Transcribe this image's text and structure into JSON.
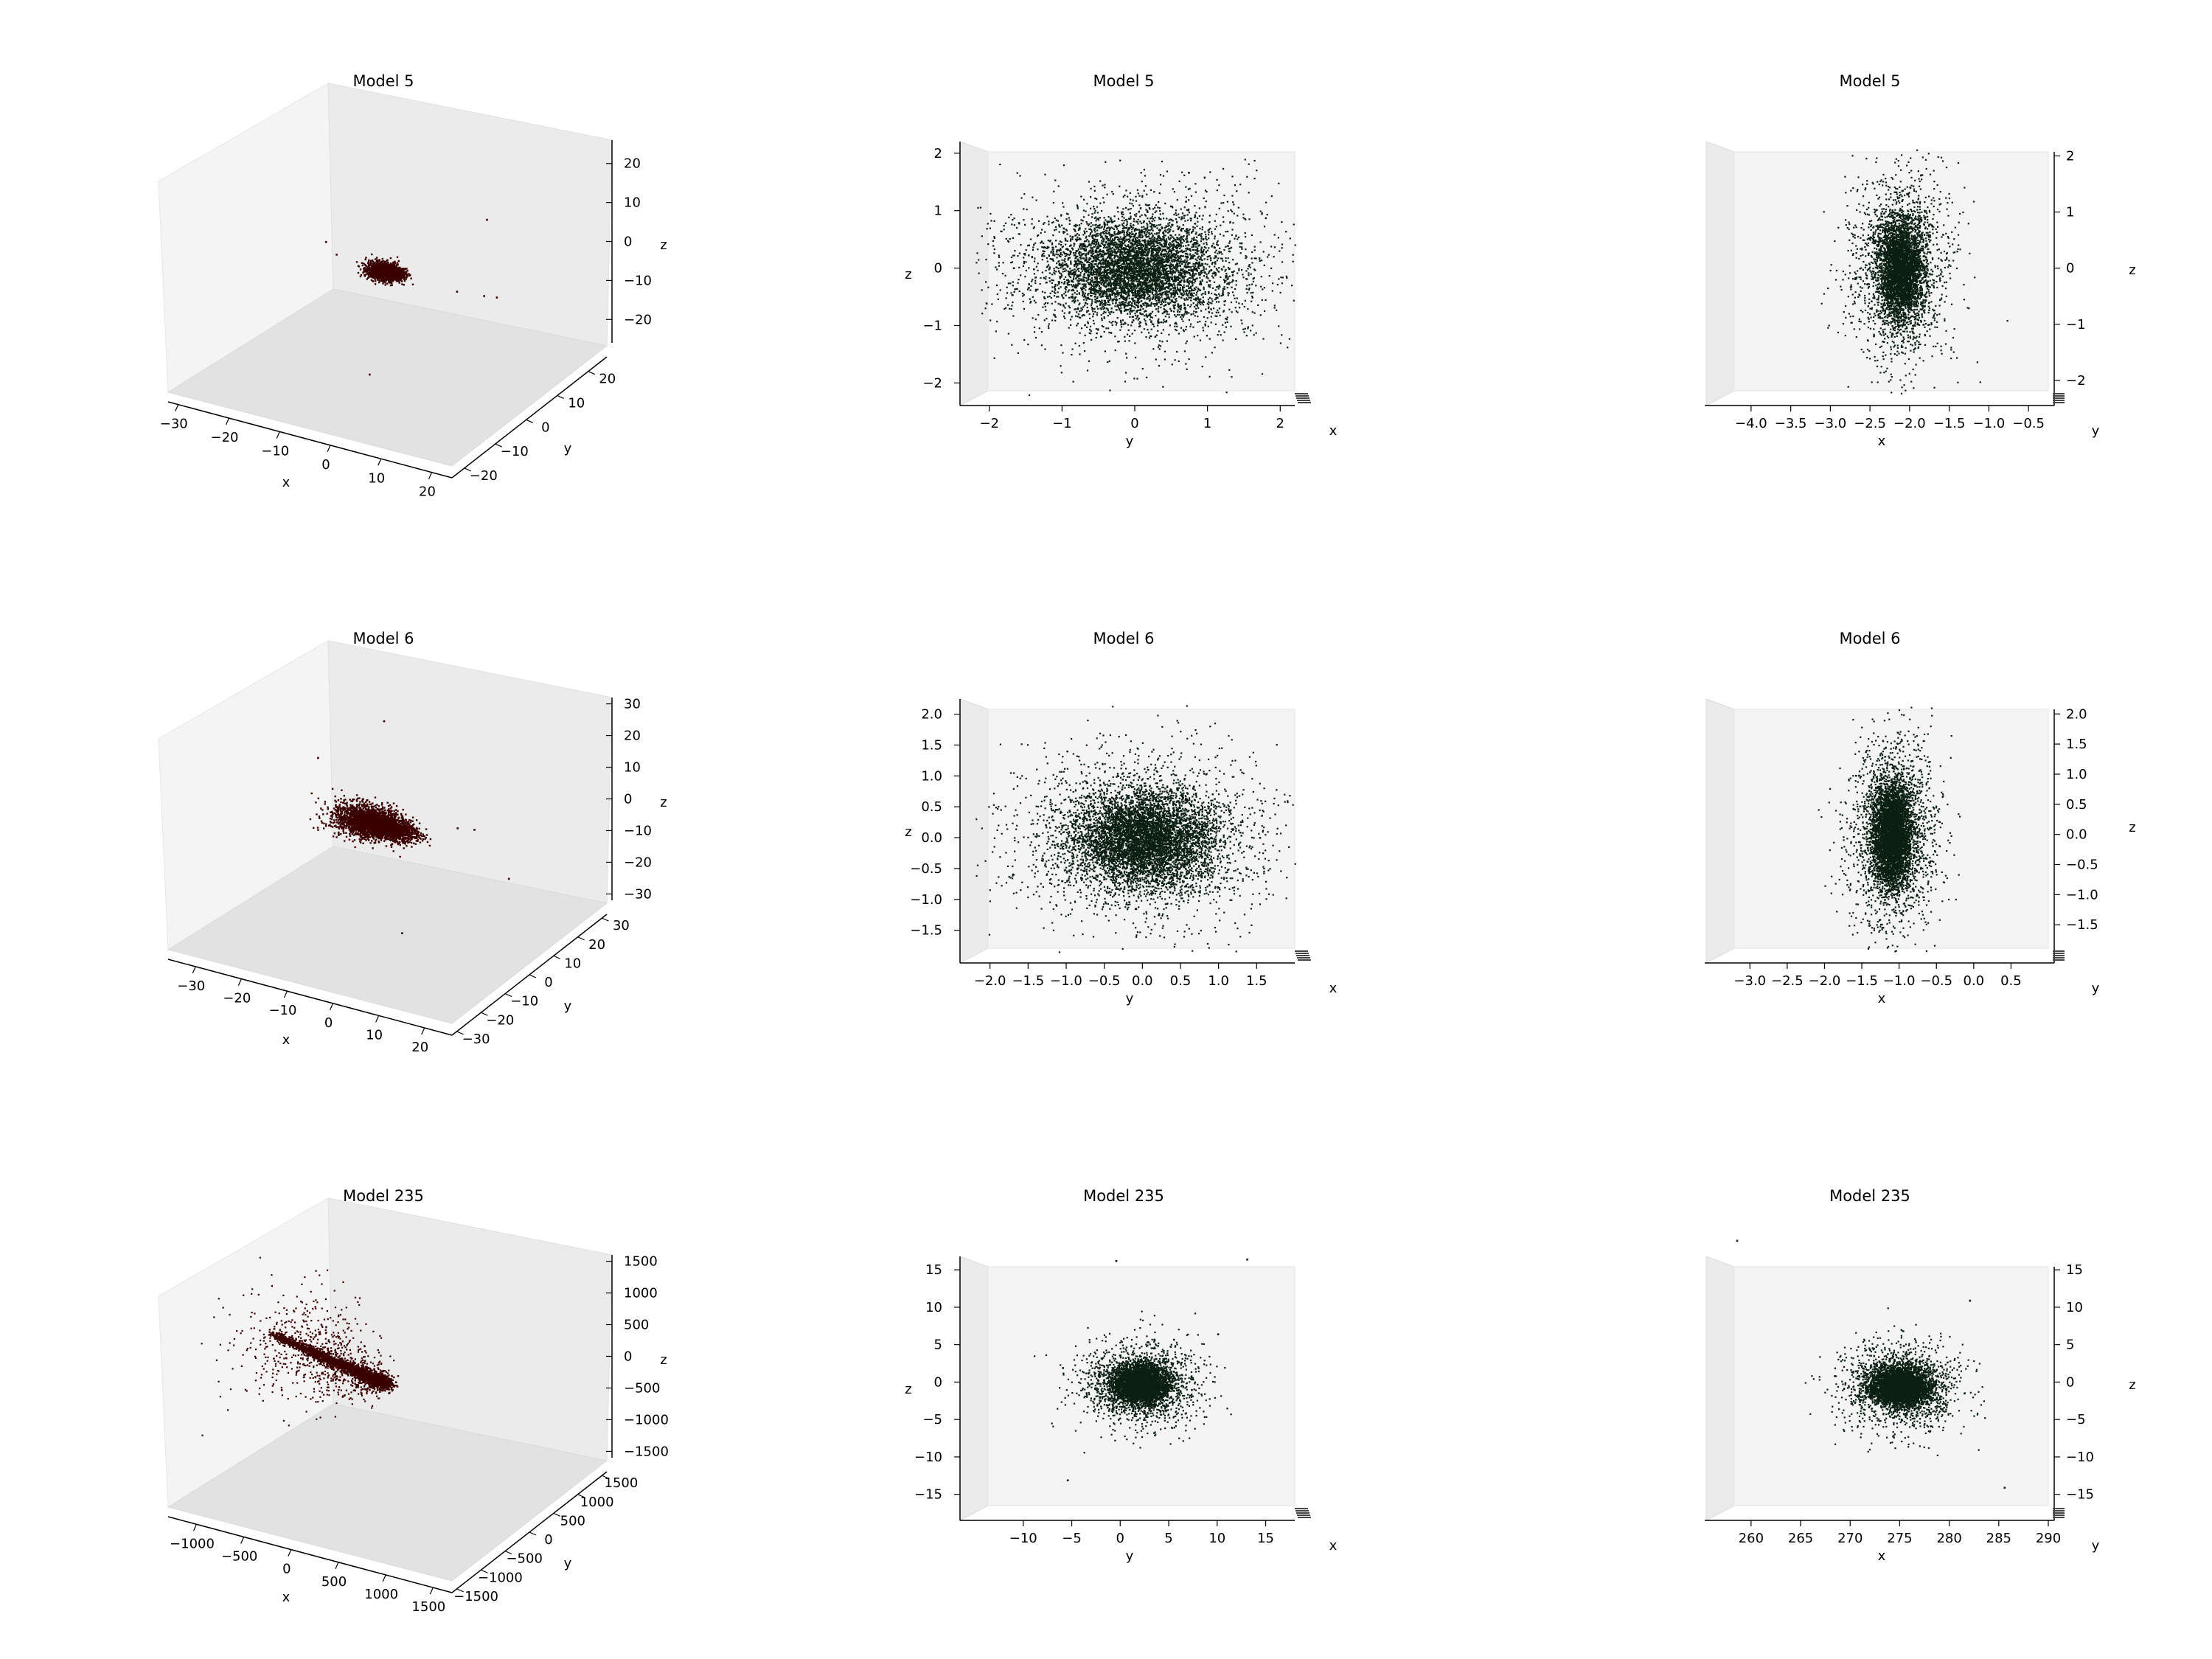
{
  "colors": {
    "background": "#ffffff",
    "pane_light": "#f4f4f4",
    "pane_mid": "#ebebeb",
    "pane_dark": "#e2e2e2",
    "point_3d": "#3a0000",
    "point_2d": "#0b1f12",
    "axis": "#000000"
  },
  "chart_data": [
    {
      "type": "scatter",
      "view": "3d",
      "title": "Model 5",
      "xlabel": "x",
      "ylabel": "y",
      "zlabel": "z",
      "xticks": [
        "−30",
        "−20",
        "−10",
        "0",
        "10",
        "20"
      ],
      "xlim": [
        -32,
        24
      ],
      "yticks": [
        "−20",
        "−10",
        "0",
        "10",
        "20"
      ],
      "ylim": [
        -24,
        26
      ],
      "zticks": [
        "−20",
        "−10",
        "0",
        "10",
        "20"
      ],
      "zlim": [
        -26,
        26
      ],
      "grid": false,
      "cluster": {
        "center": [
          -2.2,
          0,
          0
        ],
        "spread": [
          1.6,
          1.2,
          0.8
        ],
        "tail_to": [
          0.5,
          0,
          0
        ],
        "points": 2500
      },
      "outliers": [
        [
          14,
          -3,
          2
        ],
        [
          18,
          4,
          -2
        ],
        [
          21,
          -6,
          5
        ],
        [
          -18,
          12,
          -8
        ],
        [
          10,
          15,
          9
        ],
        [
          5,
          -18,
          -14
        ],
        [
          -8,
          -10,
          11
        ]
      ]
    },
    {
      "type": "scatter",
      "view": "yz",
      "title": "Model 5",
      "xlabel": "y",
      "ylabel": "z",
      "depth_label": "x",
      "xticks": [
        "−2",
        "−1",
        "0",
        "1",
        "2"
      ],
      "xlim": [
        -2.2,
        2.2
      ],
      "yticks": [
        "−2",
        "−1",
        "0",
        "1",
        "2"
      ],
      "ylim": [
        -2.2,
        2.1
      ],
      "grid": false,
      "cluster": {
        "center": [
          0,
          0
        ],
        "sd": [
          0.55,
          0.42
        ],
        "halo_sd": [
          1.05,
          0.75
        ],
        "points": 6000
      }
    },
    {
      "type": "scatter",
      "view": "xz",
      "title": "Model 5",
      "xlabel": "x",
      "ylabel": "z",
      "depth_label": "y",
      "xticks": [
        "−4.0",
        "−3.5",
        "−3.0",
        "−2.5",
        "−2.0",
        "−1.5",
        "−1.0",
        "−0.5"
      ],
      "xlim": [
        -4.25,
        -0.25
      ],
      "yticks": [
        "−2",
        "−1",
        "0",
        "1",
        "2"
      ],
      "ylim": [
        -2.25,
        2.15
      ],
      "grid": false,
      "cluster": {
        "center": [
          -2.12,
          0
        ],
        "sd": [
          0.14,
          0.45
        ],
        "halo_sd": [
          0.32,
          0.85
        ],
        "points": 5000
      }
    },
    {
      "type": "scatter",
      "view": "3d",
      "title": "Model 6",
      "xlabel": "x",
      "ylabel": "y",
      "zlabel": "z",
      "xticks": [
        "−30",
        "−20",
        "−10",
        "0",
        "10",
        "20"
      ],
      "xlim": [
        -36,
        26
      ],
      "yticks": [
        "−30",
        "−20",
        "−10",
        "0",
        "10",
        "20",
        "30"
      ],
      "ylim": [
        -32,
        32
      ],
      "zticks": [
        "−30",
        "−20",
        "−10",
        "0",
        "10",
        "20",
        "30"
      ],
      "zlim": [
        -32,
        32
      ],
      "grid": false,
      "cluster": {
        "center": [
          -8,
          0,
          0
        ],
        "spread": [
          3.5,
          2.5,
          2.2
        ],
        "tail_to": [
          2,
          0,
          -0.5
        ],
        "points": 3000
      },
      "outliers": [
        [
          15,
          -5,
          9
        ],
        [
          20,
          8,
          -12
        ],
        [
          -25,
          15,
          5
        ],
        [
          10,
          -20,
          -18
        ],
        [
          -12,
          18,
          20
        ],
        [
          22,
          -12,
          15
        ]
      ]
    },
    {
      "type": "scatter",
      "view": "yz",
      "title": "Model 6",
      "xlabel": "y",
      "ylabel": "z",
      "depth_label": "x",
      "xticks": [
        "−2.0",
        "−1.5",
        "−1.0",
        "−0.5",
        "0.0",
        "0.5",
        "1.0",
        "1.5"
      ],
      "xlim": [
        -2.2,
        2.0
      ],
      "yticks": [
        "−1.5",
        "−1.0",
        "−0.5",
        "0.0",
        "0.5",
        "1.0",
        "1.5",
        "2.0"
      ],
      "ylim": [
        -1.85,
        2.15
      ],
      "grid": false,
      "cluster": {
        "center": [
          0,
          0
        ],
        "sd": [
          0.45,
          0.38
        ],
        "halo_sd": [
          0.85,
          0.7
        ],
        "points": 7000
      }
    },
    {
      "type": "scatter",
      "view": "xz",
      "title": "Model 6",
      "xlabel": "x",
      "ylabel": "z",
      "depth_label": "y",
      "xticks": [
        "−3.0",
        "−2.5",
        "−2.0",
        "−1.5",
        "−1.0",
        "−0.5",
        "0.0",
        "0.5"
      ],
      "xlim": [
        -3.25,
        1.0
      ],
      "yticks": [
        "−1.5",
        "−1.0",
        "−0.5",
        "0.0",
        "0.5",
        "1.0",
        "1.5",
        "2.0"
      ],
      "ylim": [
        -1.95,
        2.15
      ],
      "grid": false,
      "cluster": {
        "center": [
          -1.1,
          0
        ],
        "sd": [
          0.13,
          0.42
        ],
        "halo_sd": [
          0.3,
          0.8
        ],
        "points": 6000
      }
    },
    {
      "type": "scatter",
      "view": "3d",
      "title": "Model 235",
      "xlabel": "x",
      "ylabel": "y",
      "zlabel": "z",
      "xticks": [
        "−1000",
        "−500",
        "0",
        "500",
        "1000",
        "1500"
      ],
      "xlim": [
        -1300,
        1700
      ],
      "yticks": [
        "−1500",
        "−1000",
        "−500",
        "0",
        "500",
        "1000",
        "1500"
      ],
      "ylim": [
        -1600,
        1600
      ],
      "zticks": [
        "−1500",
        "−1000",
        "−500",
        "0",
        "500",
        "1000",
        "1500"
      ],
      "zlim": [
        -1600,
        1600
      ],
      "grid": false,
      "cluster": {
        "center": [
          250,
          0,
          0
        ],
        "spread": [
          60,
          50,
          50
        ],
        "tail_to": [
          -900,
          0,
          300
        ],
        "points": 2000
      },
      "halo": {
        "points": 800,
        "spread": [
          380,
          450,
          350
        ]
      },
      "outliers": []
    },
    {
      "type": "scatter",
      "view": "yz",
      "title": "Model 235",
      "xlabel": "y",
      "ylabel": "z",
      "depth_label": "x",
      "xticks": [
        "−10",
        "−5",
        "0",
        "5",
        "10",
        "15"
      ],
      "xlim": [
        -15,
        18
      ],
      "yticks": [
        "−15",
        "−10",
        "−5",
        "0",
        "5",
        "10",
        "15"
      ],
      "ylim": [
        -17,
        16
      ],
      "grid": false,
      "cluster": {
        "center": [
          2,
          -0.2
        ],
        "sd": [
          1.5,
          1.3
        ],
        "halo_sd": [
          3.0,
          2.8
        ],
        "points": 5000
      },
      "outliers": [
        [
          -0.5,
          16.3
        ],
        [
          13,
          16.5
        ],
        [
          -5.5,
          -13
        ],
        [
          10,
          6.5
        ],
        [
          -6,
          2
        ]
      ]
    },
    {
      "type": "scatter",
      "view": "xz",
      "title": "Model 235",
      "xlabel": "x",
      "ylabel": "z",
      "depth_label": "y",
      "xticks": [
        "260",
        "265",
        "270",
        "275",
        "280",
        "285",
        "290"
      ],
      "xlim": [
        258,
        290
      ],
      "yticks": [
        "−15",
        "−10",
        "−5",
        "0",
        "5",
        "10",
        "15"
      ],
      "ylim": [
        -17,
        16
      ],
      "grid": false,
      "cluster": {
        "center": [
          275,
          -0.5
        ],
        "sd": [
          1.5,
          1.3
        ],
        "halo_sd": [
          3.0,
          2.8
        ],
        "points": 5000
      },
      "outliers": [
        [
          282,
          11
        ],
        [
          285.5,
          -14
        ],
        [
          258.5,
          19
        ]
      ]
    }
  ]
}
